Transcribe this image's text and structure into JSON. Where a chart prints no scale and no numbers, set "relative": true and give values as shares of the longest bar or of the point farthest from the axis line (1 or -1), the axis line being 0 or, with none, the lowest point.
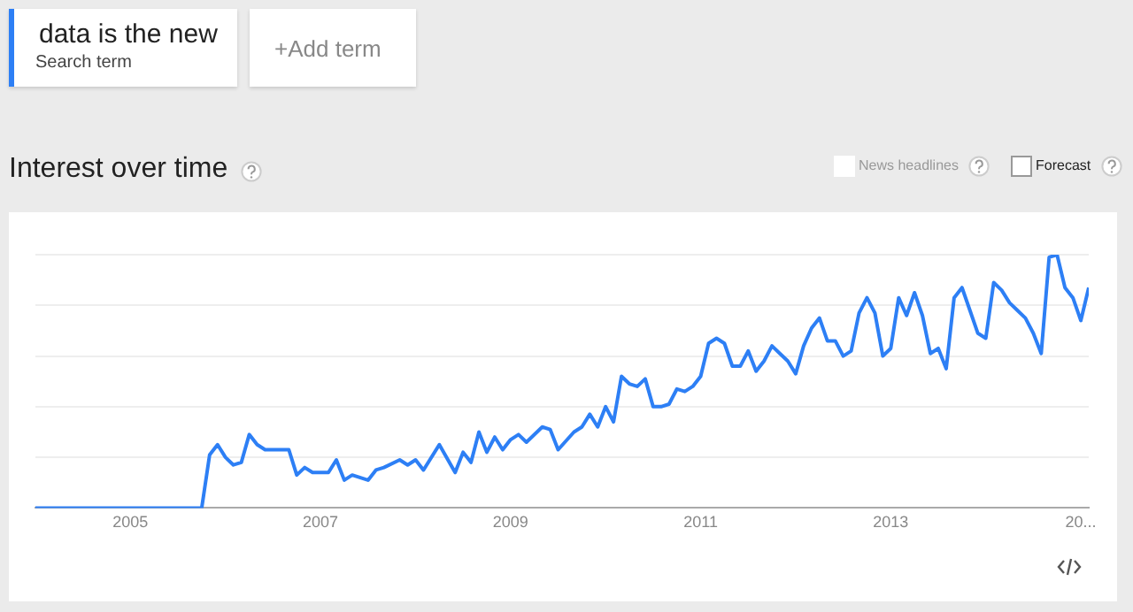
{
  "chart_data": {
    "type": "line",
    "title": "Interest over time",
    "relative": true,
    "grid": "y",
    "legend": "top left",
    "annotations": [
      "Search term",
      "+Add term",
      "News headlines",
      "Forecast"
    ],
    "xlim": [
      "2004-01",
      "2015-02"
    ],
    "xticks": [
      {
        "value": "2005",
        "label": "2005"
      },
      {
        "value": "2007",
        "label": "2007"
      },
      {
        "value": "2009",
        "label": "2009"
      },
      {
        "value": "2011",
        "label": "2011"
      },
      {
        "value": "2013",
        "label": "2013"
      },
      {
        "value": "2015",
        "label": "20..."
      }
    ],
    "series": [
      {
        "name": "data is the new",
        "color": "#2d7ff5",
        "x": [
          "2004-01",
          "2005-10",
          "2005-11",
          "2005-12",
          "2006-01",
          "2006-02",
          "2006-03",
          "2006-04",
          "2006-05",
          "2006-06",
          "2006-09",
          "2006-10",
          "2006-11",
          "2006-12",
          "2007-02",
          "2007-03",
          "2007-04",
          "2007-05",
          "2007-07",
          "2007-08",
          "2007-09",
          "2007-11",
          "2007-12",
          "2008-01",
          "2008-02",
          "2008-04",
          "2008-06",
          "2008-07",
          "2008-08",
          "2008-09",
          "2008-10",
          "2008-11",
          "2008-12",
          "2009-01",
          "2009-02",
          "2009-03",
          "2009-05",
          "2009-06",
          "2009-07",
          "2009-09",
          "2009-10",
          "2009-11",
          "2009-12",
          "2010-01",
          "2010-02",
          "2010-03",
          "2010-04",
          "2010-05",
          "2010-06",
          "2010-07",
          "2010-08",
          "2010-09",
          "2010-10",
          "2010-11",
          "2010-12",
          "2011-01",
          "2011-02",
          "2011-03",
          "2011-04",
          "2011-05",
          "2011-06",
          "2011-07",
          "2011-08",
          "2011-09",
          "2011-10",
          "2011-11",
          "2011-12",
          "2012-01",
          "2012-02",
          "2012-03",
          "2012-04",
          "2012-05",
          "2012-06",
          "2012-07",
          "2012-08",
          "2012-09",
          "2012-10",
          "2012-11",
          "2012-12",
          "2013-01",
          "2013-02",
          "2013-03",
          "2013-04",
          "2013-05",
          "2013-06",
          "2013-07",
          "2013-08",
          "2013-09",
          "2013-10",
          "2013-11",
          "2013-12",
          "2014-01",
          "2014-02",
          "2014-03",
          "2014-04",
          "2014-05",
          "2014-06",
          "2014-07",
          "2014-08",
          "2014-09",
          "2014-10",
          "2014-11",
          "2014-12",
          "2015-01",
          "2015-02"
        ],
        "values": [
          0,
          0,
          0.21,
          0.25,
          0.2,
          0.17,
          0.18,
          0.29,
          0.25,
          0.23,
          0.23,
          0.13,
          0.16,
          0.14,
          0.14,
          0.19,
          0.11,
          0.13,
          0.11,
          0.15,
          0.16,
          0.19,
          0.17,
          0.19,
          0.15,
          0.25,
          0.14,
          0.22,
          0.18,
          0.3,
          0.22,
          0.28,
          0.23,
          0.27,
          0.29,
          0.26,
          0.32,
          0.31,
          0.23,
          0.3,
          0.32,
          0.37,
          0.32,
          0.4,
          0.34,
          0.52,
          0.49,
          0.48,
          0.51,
          0.4,
          0.4,
          0.41,
          0.47,
          0.46,
          0.48,
          0.52,
          0.65,
          0.67,
          0.65,
          0.56,
          0.56,
          0.62,
          0.54,
          0.58,
          0.64,
          0.61,
          0.58,
          0.53,
          0.64,
          0.71,
          0.75,
          0.66,
          0.66,
          0.6,
          0.62,
          0.77,
          0.83,
          0.77,
          0.6,
          0.63,
          0.83,
          0.76,
          0.85,
          0.76,
          0.61,
          0.63,
          0.55,
          0.83,
          0.87,
          0.78,
          0.69,
          0.67,
          0.89,
          0.86,
          0.81,
          0.78,
          0.75,
          0.69,
          0.61,
          0.99,
          1,
          0.87,
          0.83,
          0.74,
          0.87
        ]
      }
    ]
  }
}
